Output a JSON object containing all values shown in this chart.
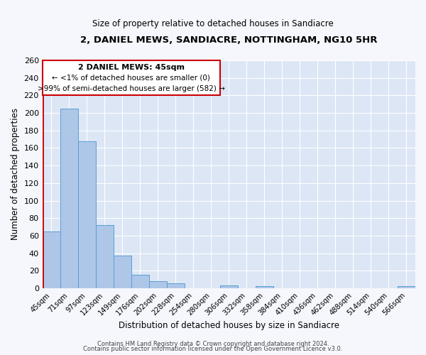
{
  "title": "2, DANIEL MEWS, SANDIACRE, NOTTINGHAM, NG10 5HR",
  "subtitle": "Size of property relative to detached houses in Sandiacre",
  "xlabel": "Distribution of detached houses by size in Sandiacre",
  "ylabel": "Number of detached properties",
  "bar_color": "#aec6e8",
  "bar_edge_color": "#5a9fd4",
  "highlight_color": "#cc0000",
  "background_color": "#dce6f5",
  "fig_facecolor": "#f5f7fc",
  "categories": [
    "45sqm",
    "71sqm",
    "97sqm",
    "123sqm",
    "149sqm",
    "176sqm",
    "202sqm",
    "228sqm",
    "254sqm",
    "280sqm",
    "306sqm",
    "332sqm",
    "358sqm",
    "384sqm",
    "410sqm",
    "436sqm",
    "462sqm",
    "488sqm",
    "514sqm",
    "540sqm",
    "566sqm"
  ],
  "values": [
    65,
    205,
    168,
    72,
    37,
    15,
    8,
    6,
    0,
    0,
    3,
    0,
    2,
    0,
    0,
    0,
    0,
    0,
    0,
    0,
    2
  ],
  "ylim": [
    0,
    260
  ],
  "yticks": [
    0,
    20,
    40,
    60,
    80,
    100,
    120,
    140,
    160,
    180,
    200,
    220,
    240,
    260
  ],
  "property_label": "2 DANIEL MEWS: 45sqm",
  "annotation_line1": "← <1% of detached houses are smaller (0)",
  "annotation_line2": ">99% of semi-detached houses are larger (582) →",
  "highlight_bar_index": 0,
  "footer_line1": "Contains HM Land Registry data © Crown copyright and database right 2024.",
  "footer_line2": "Contains public sector information licensed under the Open Government Licence v3.0."
}
